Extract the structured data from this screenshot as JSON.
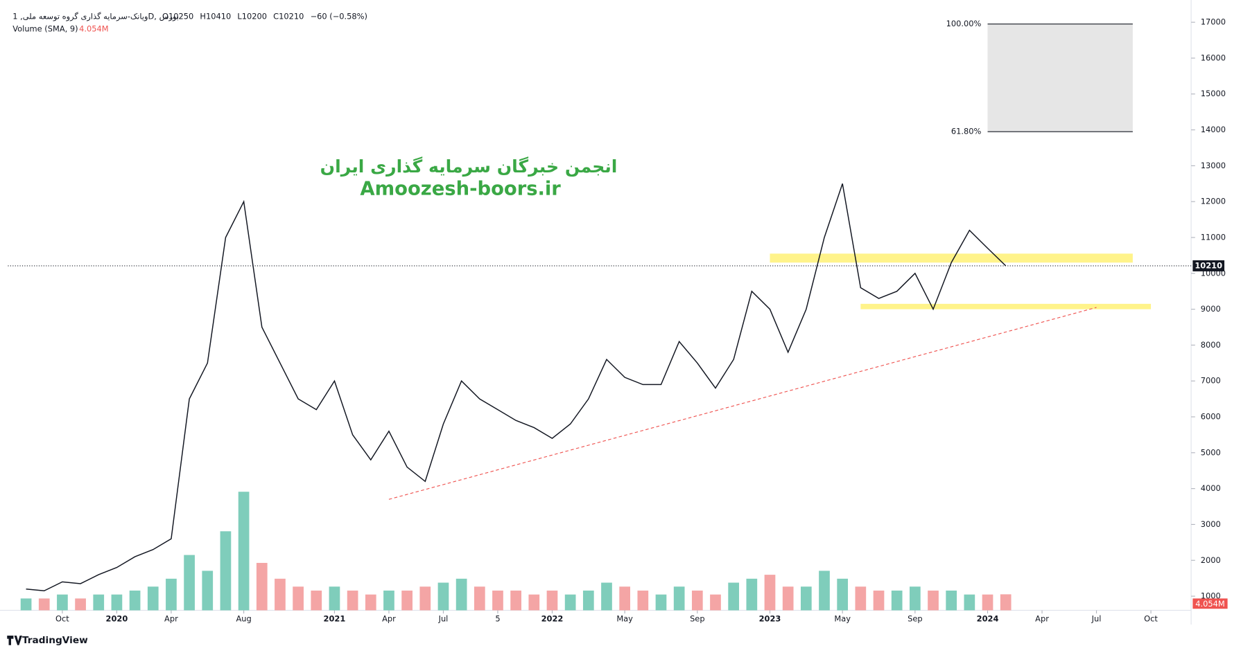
{
  "chart_data": {
    "type": "line",
    "header": {
      "symbol": "ویانک-سرمایه گذاری گروه توسعه ملی, 1D, بورس",
      "ohlc": [
        "O10250",
        "H10410",
        "L10200",
        "C10210",
        "−60 (−0.58%)"
      ]
    },
    "watermark": [
      "انجمن خبرگان سرمایه گذاری ایران",
      "Amoozesh-boors.ir"
    ],
    "logo": "TradingView",
    "x": [
      "2019-08",
      "2019-09",
      "2019-10",
      "2019-11",
      "2019-12",
      "2020-01",
      "2020-02",
      "2020-03",
      "2020-04",
      "2020-05",
      "2020-06",
      "2020-07",
      "2020-08",
      "2020-09",
      "2020-10",
      "2020-11",
      "2020-12",
      "2021-01",
      "2021-02",
      "2021-03",
      "2021-04",
      "2021-05",
      "2021-06",
      "2021-07",
      "2021-08",
      "2021-09",
      "2021-10",
      "2021-11",
      "2021-12",
      "2022-01",
      "2022-02",
      "2022-03",
      "2022-04",
      "2022-05",
      "2022-06",
      "2022-07",
      "2022-08",
      "2022-09",
      "2022-10",
      "2022-11",
      "2022-12",
      "2023-01",
      "2023-02",
      "2023-03",
      "2023-04",
      "2023-05",
      "2023-06",
      "2023-07",
      "2023-08",
      "2023-09",
      "2023-10",
      "2023-11",
      "2023-12",
      "2024-01",
      "2024-02"
    ],
    "series": [
      {
        "name": "Close",
        "color": "#131722",
        "values": [
          1200,
          1150,
          1400,
          1350,
          1600,
          1800,
          2100,
          2300,
          2600,
          6500,
          7500,
          11000,
          12000,
          8500,
          7500,
          6500,
          6200,
          7000,
          5500,
          4800,
          5600,
          4600,
          4200,
          5800,
          7000,
          6500,
          6200,
          5900,
          5700,
          5400,
          5800,
          6500,
          7600,
          7100,
          6900,
          6900,
          8100,
          7500,
          6800,
          7600,
          9500,
          9000,
          7800,
          9000,
          11000,
          12500,
          9600,
          9300,
          9500,
          10000,
          9000,
          10300,
          11200,
          10700,
          10210
        ]
      }
    ],
    "volume": {
      "name": "Volume (SMA, 9)",
      "last_label": "4.054M",
      "up_color": "#7fcdbb",
      "down_color": "#f4a5a5",
      "values": [
        3,
        3,
        4,
        3,
        4,
        4,
        5,
        6,
        8,
        14,
        10,
        20,
        30,
        12,
        8,
        6,
        5,
        6,
        5,
        4,
        5,
        5,
        6,
        7,
        8,
        6,
        5,
        5,
        4,
        5,
        4,
        5,
        7,
        6,
        5,
        4,
        6,
        5,
        4,
        7,
        8,
        9,
        6,
        6,
        10,
        8,
        6,
        5,
        5,
        6,
        5,
        5,
        4,
        4,
        4.054
      ]
    },
    "xlim": [
      "2019-07",
      "2024-12"
    ],
    "xticks": [
      {
        "value": "2019-10",
        "label": "Oct"
      },
      {
        "value": "2020-01",
        "label": "2020"
      },
      {
        "value": "2020-04",
        "label": "Apr"
      },
      {
        "value": "2020-08",
        "label": "Aug"
      },
      {
        "value": "2021-01",
        "label": "2021"
      },
      {
        "value": "2021-04",
        "label": "Apr"
      },
      {
        "value": "2021-07",
        "label": "Jul"
      },
      {
        "value": "2021-10",
        "label": "5"
      },
      {
        "value": "2022-01",
        "label": "2022"
      },
      {
        "value": "2022-05",
        "label": "May"
      },
      {
        "value": "2022-09",
        "label": "Sep"
      },
      {
        "value": "2023-01",
        "label": "2023"
      },
      {
        "value": "2023-05",
        "label": "May"
      },
      {
        "value": "2023-09",
        "label": "Sep"
      },
      {
        "value": "2024-01",
        "label": "2024"
      },
      {
        "value": "2024-04",
        "label": "Apr"
      },
      {
        "value": "2024-07",
        "label": "Jul"
      },
      {
        "value": "2024-10",
        "label": "Oct"
      }
    ],
    "ylim": [
      650,
      17400
    ],
    "yticks": [
      1000,
      2000,
      3000,
      4000,
      5000,
      6000,
      7000,
      8000,
      9000,
      10000,
      11000,
      12000,
      13000,
      14000,
      15000,
      16000,
      17000
    ],
    "fib": {
      "from": "2024-01",
      "to": "2024-09",
      "levels": [
        {
          "value": 16950,
          "label": "100.00%"
        },
        {
          "value": 13950,
          "label": "61.80%"
        }
      ]
    },
    "zones": [
      {
        "from": "2023-01",
        "to": "2024-09",
        "low": 10300,
        "high": 10550,
        "color": "#fff176"
      },
      {
        "from": "2023-06",
        "to": "2024-10",
        "low": 9000,
        "high": 9150,
        "color": "#fff176"
      }
    ],
    "trendline": {
      "color": "#ef5350",
      "start": {
        "x": "2021-04",
        "y": 3700
      },
      "end": {
        "x": "2024-07",
        "y": 9050
      }
    }
  }
}
